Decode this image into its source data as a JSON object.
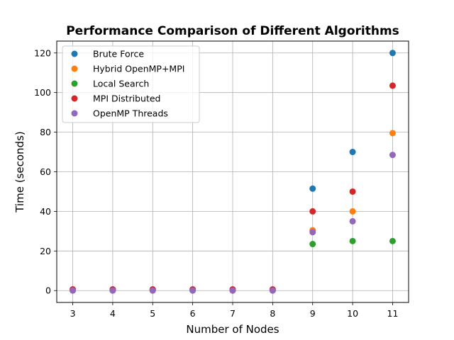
{
  "chart_data": {
    "type": "scatter",
    "title": "Performance Comparison of Different Algorithms",
    "xlabel": "Number of Nodes",
    "ylabel": "Time (seconds)",
    "xlim": [
      2.6,
      11.4
    ],
    "ylim": [
      -6,
      126
    ],
    "xticks": [
      3,
      4,
      5,
      6,
      7,
      8,
      9,
      10,
      11
    ],
    "yticks": [
      0,
      20,
      40,
      60,
      80,
      100,
      120
    ],
    "grid": true,
    "legend_position": "top-left",
    "series": [
      {
        "name": "Brute Force",
        "color": "#1f77b4",
        "points": [
          [
            3,
            0.5
          ],
          [
            4,
            0.5
          ],
          [
            5,
            0.5
          ],
          [
            6,
            0.5
          ],
          [
            7,
            0.5
          ],
          [
            8,
            0.5
          ],
          [
            9,
            51.5
          ],
          [
            10,
            70
          ],
          [
            11,
            120
          ]
        ]
      },
      {
        "name": "Hybrid OpenMP+MPI",
        "color": "#ff7f0e",
        "points": [
          [
            3,
            0.3
          ],
          [
            4,
            0.3
          ],
          [
            5,
            0.3
          ],
          [
            6,
            0.3
          ],
          [
            7,
            0.3
          ],
          [
            8,
            0.3
          ],
          [
            9,
            30.5
          ],
          [
            10,
            40
          ],
          [
            11,
            79.5
          ]
        ]
      },
      {
        "name": "Local Search",
        "color": "#2ca02c",
        "points": [
          [
            3,
            0.1
          ],
          [
            4,
            0.1
          ],
          [
            5,
            0.1
          ],
          [
            6,
            0.1
          ],
          [
            7,
            0.1
          ],
          [
            8,
            0.1
          ],
          [
            9,
            23.5
          ],
          [
            10,
            25
          ],
          [
            11,
            25
          ]
        ]
      },
      {
        "name": "MPI Distributed",
        "color": "#d62728",
        "points": [
          [
            3,
            0.6
          ],
          [
            4,
            0.6
          ],
          [
            5,
            0.6
          ],
          [
            6,
            0.6
          ],
          [
            7,
            0.6
          ],
          [
            8,
            0.6
          ],
          [
            9,
            40
          ],
          [
            10,
            50
          ],
          [
            11,
            103.5
          ]
        ]
      },
      {
        "name": "OpenMP Threads",
        "color": "#9467bd",
        "points": [
          [
            3,
            0
          ],
          [
            4,
            0
          ],
          [
            5,
            0
          ],
          [
            6,
            0
          ],
          [
            7,
            0
          ],
          [
            8,
            0
          ],
          [
            9,
            29.5
          ],
          [
            10,
            35
          ],
          [
            11,
            68.5
          ]
        ]
      }
    ]
  }
}
